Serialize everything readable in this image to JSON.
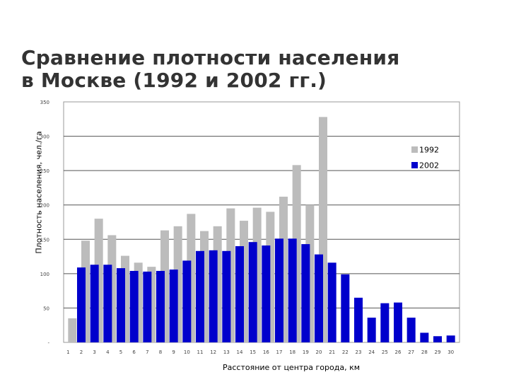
{
  "title_lines": [
    "Сравнение плотности населения",
    "в Москве (1992 и 2002 гг.)"
  ],
  "chart_data": {
    "type": "bar",
    "ylabel": "Плотность населения, чел./га",
    "xlabel": "Расстояние от центра города, км",
    "ylim": [
      0,
      350
    ],
    "y_ticks": [
      "-",
      "50",
      "100",
      "150",
      "200",
      "250",
      "300",
      "350"
    ],
    "y_tick_values": [
      0,
      50,
      100,
      150,
      200,
      250,
      300,
      350
    ],
    "grid": true,
    "legend_position": "top-right",
    "categories": [
      "1",
      "2",
      "3",
      "4",
      "5",
      "6",
      "7",
      "8",
      "9",
      "10",
      "11",
      "12",
      "13",
      "14",
      "15",
      "16",
      "17",
      "18",
      "19",
      "20",
      "21",
      "22",
      "23",
      "24",
      "25",
      "26",
      "27",
      "28",
      "29",
      "30"
    ],
    "series": [
      {
        "name": "1992",
        "color": "#bcbcbc",
        "values": [
          35,
          148,
          180,
          156,
          126,
          116,
          110,
          163,
          169,
          187,
          162,
          169,
          195,
          177,
          196,
          190,
          212,
          258,
          200,
          328,
          null,
          null,
          null,
          null,
          null,
          null,
          null,
          null,
          null,
          null
        ]
      },
      {
        "name": "2002",
        "color": "#0000cc",
        "values": [
          null,
          109,
          113,
          113,
          108,
          104,
          103,
          104,
          106,
          119,
          133,
          134,
          133,
          140,
          146,
          141,
          151,
          151,
          143,
          128,
          116,
          99,
          65,
          36,
          57,
          58,
          36,
          14,
          9,
          10
        ]
      }
    ]
  }
}
